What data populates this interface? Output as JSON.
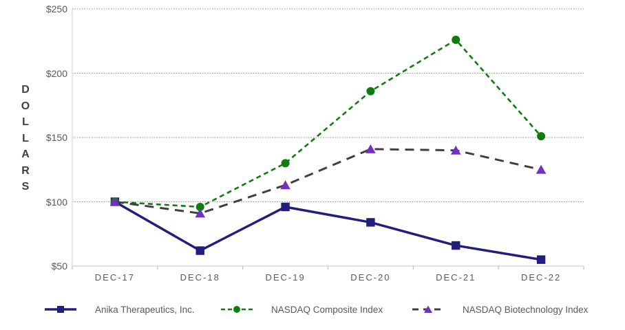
{
  "chart_data": {
    "type": "line",
    "title": "",
    "xlabel": "",
    "ylabel": "DOLLARS",
    "categories": [
      "DEC-17",
      "DEC-18",
      "DEC-19",
      "DEC-20",
      "DEC-21",
      "DEC-22"
    ],
    "y_tick_labels": [
      "$250",
      "$200",
      "$150",
      "$100",
      "$50"
    ],
    "y_tick_values": [
      250,
      200,
      150,
      100,
      50
    ],
    "ylim": [
      50,
      250
    ],
    "grid": "horizontal-dotted",
    "legend_position": "bottom",
    "series": [
      {
        "name": "Anika Therapeutics, Inc.",
        "values": [
          100,
          62,
          96,
          84,
          66,
          55
        ],
        "color": "#221E7C",
        "line_style": "solid",
        "marker": "square",
        "marker_color": "#221E7C"
      },
      {
        "name": "NASDAQ Composite Index",
        "values": [
          100,
          96,
          130,
          186,
          226,
          151
        ],
        "color": "#107C10",
        "line_style": "dashed",
        "marker": "circle",
        "marker_color": "#107C10"
      },
      {
        "name": "NASDAQ Biotechnology Index",
        "values": [
          100,
          91,
          113,
          141,
          140,
          125
        ],
        "color": "#3F3F3F",
        "line_style": "long-dash",
        "marker": "triangle",
        "marker_color": "#7030C0"
      }
    ]
  },
  "colors": {
    "gridline": "#8C8C8C",
    "axis_line": "#D9D9D9",
    "axis_tick": "#BFBFBF",
    "tick_text": "#595959",
    "axis_title_text": "#404040",
    "background": "#FFFFFF"
  }
}
